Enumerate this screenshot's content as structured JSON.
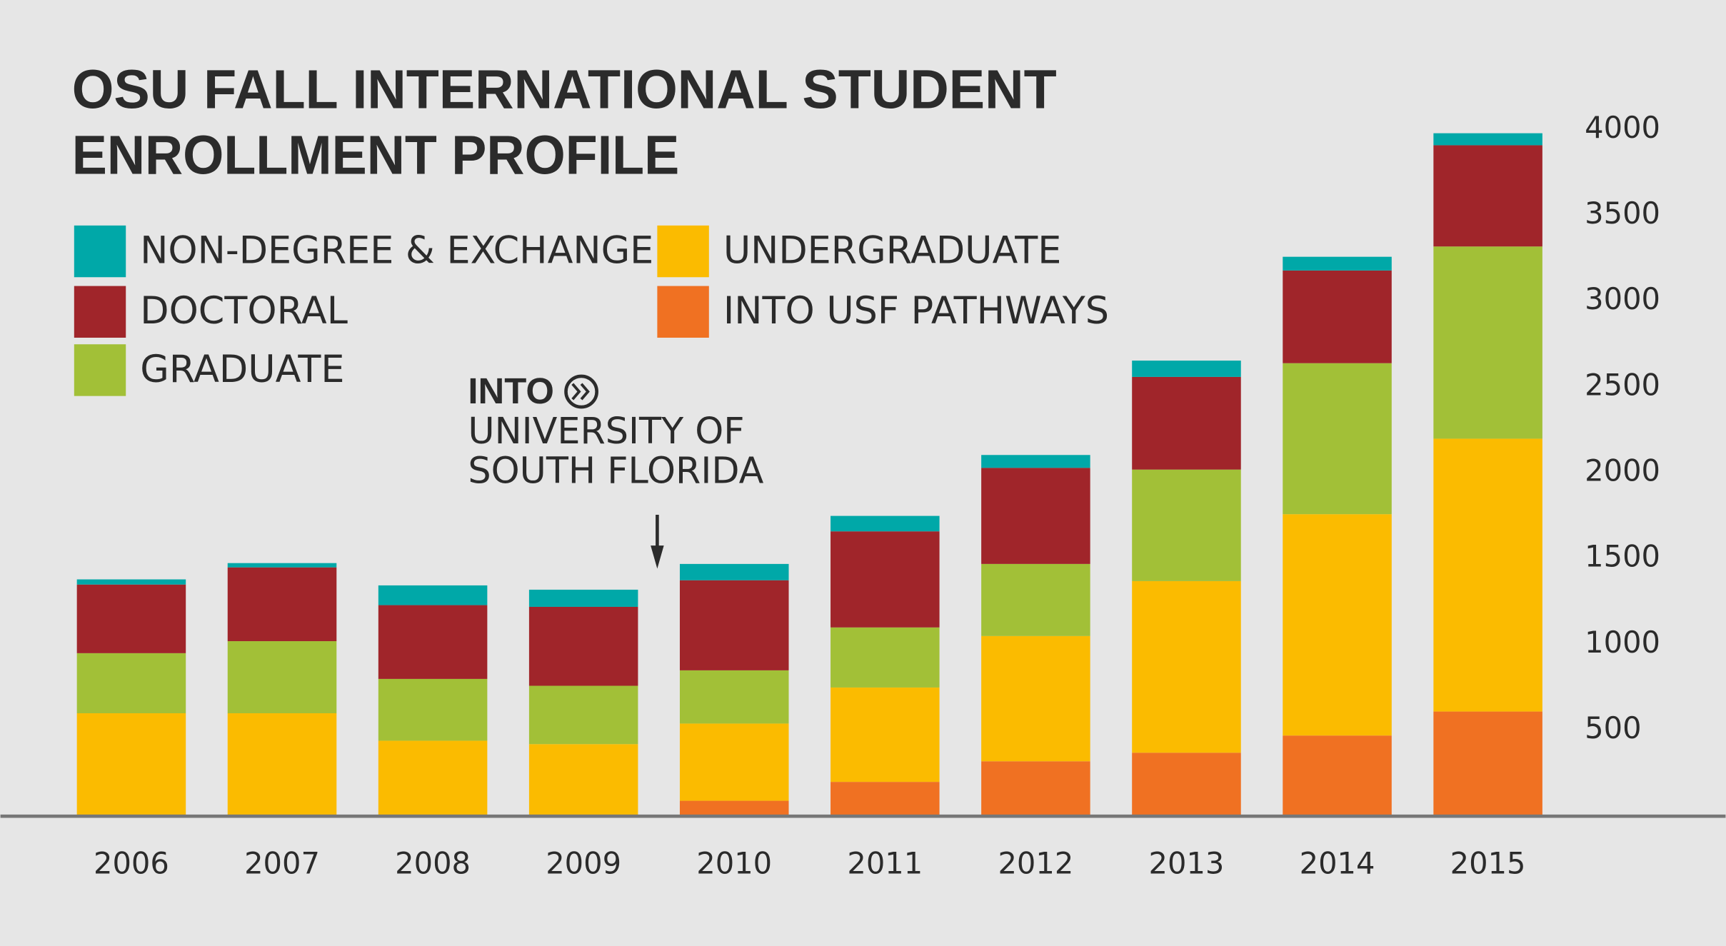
{
  "chart_data": {
    "type": "stacked_bar",
    "title": [
      "OSU FALL INTERNATIONAL STUDENT",
      "ENROLLMENT PROFILE"
    ],
    "annotation": [
      "INTO",
      "UNIVERSITY OF",
      "SOUTH FLORIDA"
    ],
    "categories": [
      "2006",
      "2007",
      "2008",
      "2009",
      "2010",
      "2011",
      "2012",
      "2013",
      "2014",
      "2015"
    ],
    "series": [
      {
        "name": "INTO USF PATHWAYS",
        "color": "#f07122",
        "values": [
          0,
          0,
          0,
          0,
          90,
          200,
          320,
          370,
          470,
          610
        ]
      },
      {
        "name": "UNDERGRADUATE",
        "color": "#fbbb00",
        "values": [
          600,
          600,
          440,
          420,
          450,
          550,
          730,
          1000,
          1290,
          1590
        ]
      },
      {
        "name": "GRADUATE",
        "color": "#a2c037",
        "values": [
          350,
          420,
          360,
          340,
          310,
          350,
          420,
          650,
          880,
          1120
        ]
      },
      {
        "name": "DOCTORAL",
        "color": "#a0252a",
        "values": [
          400,
          430,
          430,
          460,
          525,
          560,
          560,
          540,
          540,
          590
        ]
      },
      {
        "name": "NON-DEGREE & EXCHANGE",
        "color": "#00a8a8",
        "values": [
          30,
          25,
          115,
          100,
          95,
          90,
          75,
          95,
          80,
          70
        ]
      }
    ],
    "ylim": [
      0,
      4000
    ],
    "yticks": [
      500,
      1000,
      1500,
      2000,
      2500,
      3000,
      3500,
      4000
    ],
    "grid": false
  }
}
